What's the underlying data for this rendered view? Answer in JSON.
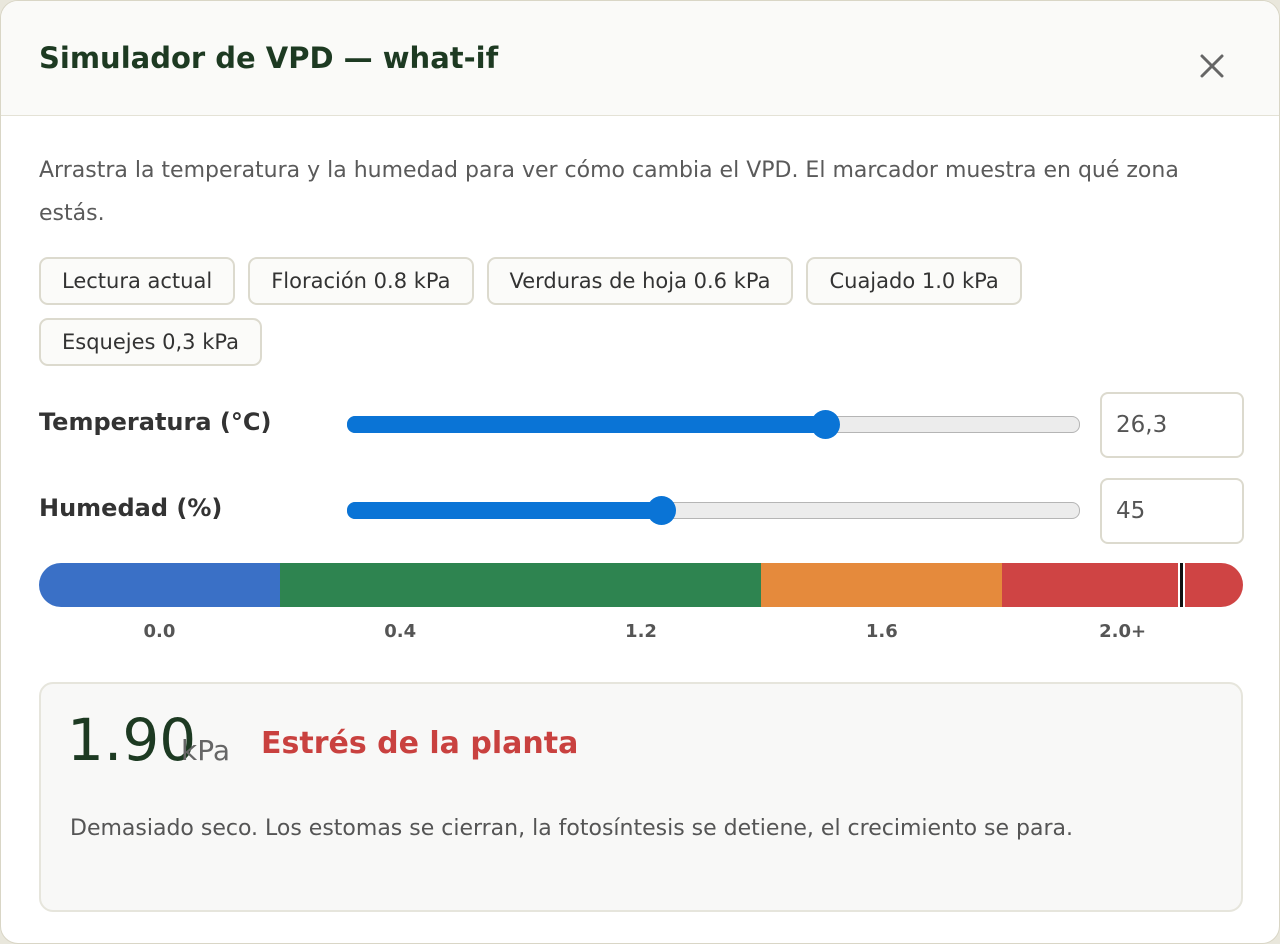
{
  "dialog": {
    "title": "Simulador de VPD — what-if",
    "description": "Arrastra la temperatura y la humedad para ver cómo cambia el VPD. El marcador muestra en qué zona estás.",
    "presets": [
      "Lectura actual",
      "Floración 0.8 kPa",
      "Verduras de hoja 0.6 kPa",
      "Cuajado 1.0 kPa",
      "Esquejes 0,3 kPa"
    ],
    "sliders": [
      {
        "label": "Temperatura (°C)",
        "value": 26.3,
        "value_label": "26,3",
        "min": 10,
        "max": 35
      },
      {
        "label": "Humedad (%)",
        "value": 45,
        "value_label": "45",
        "min": 15,
        "max": 85
      }
    ],
    "scale": {
      "range": [
        0,
        2.0
      ],
      "zones": [
        {
          "from": 0,
          "to": 0.4,
          "color": "#3a70c6"
        },
        {
          "from": 0.4,
          "to": 1.2,
          "color": "#2e8450"
        },
        {
          "from": 1.2,
          "to": 1.6,
          "color": "#e58a3c"
        },
        {
          "from": 1.6,
          "to": 2.0,
          "color": "#cf4444"
        }
      ],
      "labels": [
        "0.0",
        "0.4",
        "1.2",
        "1.6",
        "2.0+"
      ],
      "marker": 1.9
    },
    "result": {
      "value": "1.90",
      "unit": "kPa",
      "status": "Estrés de la planta",
      "message": "Demasiado seco. Los estomas se cierran, la fotosíntesis se detiene, el crecimiento se para."
    }
  }
}
